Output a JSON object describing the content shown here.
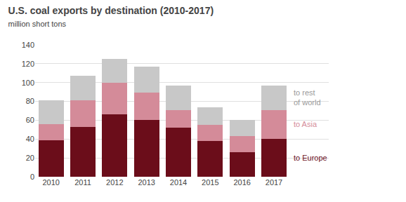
{
  "chart_data": {
    "type": "bar",
    "stacked": true,
    "title": "U.S. coal exports by destination (2010-2017)",
    "subtitle": "million short tons",
    "categories": [
      "2010",
      "2011",
      "2012",
      "2013",
      "2014",
      "2015",
      "2016",
      "2017"
    ],
    "series": [
      {
        "name": "to Europe",
        "color": "#6b0d1a",
        "values": [
          39,
          53,
          66,
          60,
          52,
          38,
          26,
          40
        ]
      },
      {
        "name": "to Asia",
        "color": "#d48b99",
        "values": [
          17,
          28,
          34,
          29,
          19,
          17,
          17,
          31
        ]
      },
      {
        "name": "to rest\nof world",
        "color": "#c8c8c8",
        "values": [
          25,
          26,
          25,
          28,
          26,
          19,
          17,
          26
        ]
      }
    ],
    "ylim": [
      0,
      140
    ],
    "yticks": [
      0,
      20,
      40,
      60,
      80,
      100,
      120,
      140
    ],
    "grid": true
  }
}
